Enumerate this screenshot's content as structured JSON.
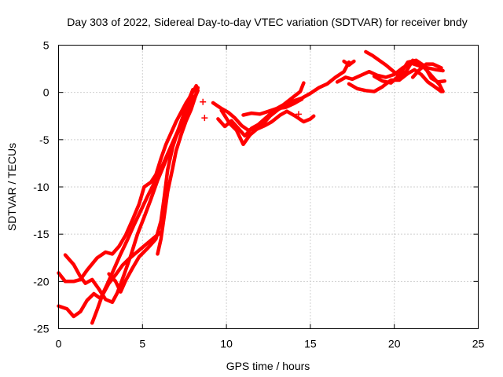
{
  "chart_data": {
    "type": "scatter",
    "title": "Day 303 of 2022, Sidereal Day-to-day VTEC variation (SDTVAR) for receiver bndy",
    "xlabel": "GPS time / hours",
    "ylabel": "SDTVAR / TECUs",
    "xlim": [
      0,
      25
    ],
    "ylim": [
      -25,
      5
    ],
    "xticks": [
      0,
      5,
      10,
      15,
      20,
      25
    ],
    "yticks": [
      -25,
      -20,
      -15,
      -10,
      -5,
      0,
      5
    ],
    "xtick_labels": [
      "0",
      "5",
      "10",
      "15",
      "20",
      "25"
    ],
    "ytick_labels": [
      "-25",
      "-20",
      "-15",
      "-10",
      "-5",
      "0",
      "5"
    ],
    "grid": true,
    "marker": "+",
    "color": "#ff0000",
    "series": [
      {
        "name": "s1",
        "points": [
          [
            0.0,
            -19.1
          ],
          [
            0.4,
            -20.0
          ],
          [
            0.9,
            -20.0
          ],
          [
            1.3,
            -19.8
          ],
          [
            1.7,
            -18.8
          ],
          [
            2.3,
            -17.5
          ],
          [
            2.8,
            -16.9
          ],
          [
            3.2,
            -17.1
          ],
          [
            3.6,
            -16.3
          ],
          [
            4.0,
            -15.1
          ],
          [
            4.4,
            -13.5
          ],
          [
            4.8,
            -11.8
          ],
          [
            5.1,
            -10.0
          ],
          [
            5.5,
            -9.5
          ],
          [
            5.8,
            -8.7
          ],
          [
            6.1,
            -7.0
          ],
          [
            6.4,
            -5.5
          ],
          [
            6.7,
            -4.3
          ],
          [
            7.0,
            -3.1
          ],
          [
            7.3,
            -2.1
          ],
          [
            7.6,
            -1.1
          ],
          [
            7.9,
            -0.3
          ],
          [
            8.2,
            0.7
          ]
        ]
      },
      {
        "name": "s2",
        "points": [
          [
            0.0,
            -22.6
          ],
          [
            0.5,
            -22.9
          ],
          [
            0.9,
            -23.7
          ],
          [
            1.3,
            -23.2
          ],
          [
            1.7,
            -22.0
          ],
          [
            2.1,
            -21.3
          ],
          [
            2.5,
            -21.8
          ],
          [
            2.9,
            -20.3
          ],
          [
            3.3,
            -18.7
          ],
          [
            3.7,
            -17.1
          ],
          [
            4.1,
            -15.6
          ],
          [
            4.5,
            -14.0
          ],
          [
            4.9,
            -12.5
          ],
          [
            5.3,
            -11.0
          ],
          [
            5.7,
            -9.6
          ],
          [
            6.1,
            -8.1
          ],
          [
            6.5,
            -6.5
          ],
          [
            6.9,
            -4.9
          ],
          [
            7.3,
            -3.3
          ],
          [
            7.7,
            -1.7
          ],
          [
            8.0,
            -0.4
          ]
        ]
      },
      {
        "name": "s3",
        "points": [
          [
            0.4,
            -17.2
          ],
          [
            0.9,
            -18.2
          ],
          [
            1.3,
            -19.5
          ],
          [
            1.6,
            -20.2
          ],
          [
            2.0,
            -19.8
          ],
          [
            2.4,
            -20.8
          ],
          [
            2.8,
            -21.9
          ],
          [
            3.2,
            -22.2
          ],
          [
            3.5,
            -21.2
          ],
          [
            3.9,
            -19.3
          ],
          [
            4.3,
            -17.3
          ],
          [
            4.7,
            -15.0
          ],
          [
            5.1,
            -13.2
          ],
          [
            5.5,
            -11.3
          ],
          [
            5.9,
            -9.3
          ],
          [
            6.3,
            -7.6
          ],
          [
            6.7,
            -5.8
          ],
          [
            7.1,
            -4.3
          ],
          [
            7.5,
            -2.8
          ],
          [
            7.9,
            -1.5
          ],
          [
            8.3,
            0.2
          ]
        ]
      },
      {
        "name": "s4",
        "points": [
          [
            2.0,
            -24.4
          ],
          [
            2.3,
            -23.0
          ],
          [
            2.6,
            -21.5
          ],
          [
            3.0,
            -20.2
          ],
          [
            3.4,
            -19.3
          ],
          [
            3.8,
            -18.3
          ],
          [
            4.2,
            -17.6
          ],
          [
            4.6,
            -17.0
          ],
          [
            5.0,
            -16.4
          ],
          [
            5.4,
            -15.8
          ],
          [
            5.8,
            -15.2
          ],
          [
            6.1,
            -14.8
          ]
        ]
      },
      {
        "name": "s5",
        "points": [
          [
            3.0,
            -19.2
          ],
          [
            3.4,
            -20.0
          ],
          [
            3.7,
            -21.1
          ],
          [
            4.0,
            -19.9
          ],
          [
            4.4,
            -18.6
          ],
          [
            4.8,
            -17.4
          ],
          [
            5.3,
            -16.5
          ],
          [
            5.8,
            -15.5
          ],
          [
            6.1,
            -13.6
          ],
          [
            6.3,
            -11.0
          ],
          [
            6.5,
            -8.2
          ],
          [
            6.8,
            -5.8
          ],
          [
            7.1,
            -4.1
          ],
          [
            7.4,
            -2.6
          ],
          [
            7.7,
            -1.0
          ],
          [
            8.0,
            0.3
          ]
        ]
      },
      {
        "name": "s6",
        "points": [
          [
            5.9,
            -17.1
          ],
          [
            6.1,
            -15.5
          ],
          [
            6.3,
            -13.0
          ],
          [
            6.5,
            -10.5
          ],
          [
            6.8,
            -8.0
          ],
          [
            7.0,
            -6.2
          ],
          [
            7.3,
            -4.5
          ],
          [
            7.6,
            -3.0
          ],
          [
            7.9,
            -1.8
          ],
          [
            8.1,
            -0.7
          ],
          [
            8.3,
            0.5
          ]
        ]
      },
      {
        "name": "s7",
        "points": [
          [
            9.2,
            -1.1
          ],
          [
            9.7,
            -1.7
          ],
          [
            10.1,
            -2.1
          ],
          [
            10.5,
            -2.7
          ],
          [
            10.9,
            -3.5
          ],
          [
            11.3,
            -4.0
          ],
          [
            11.7,
            -3.8
          ],
          [
            12.2,
            -3.3
          ],
          [
            12.6,
            -2.5
          ],
          [
            13.1,
            -1.8
          ],
          [
            13.6,
            -1.3
          ],
          [
            14.0,
            -0.9
          ],
          [
            14.5,
            -0.6
          ],
          [
            15.0,
            -0.1
          ],
          [
            15.5,
            0.5
          ],
          [
            16.0,
            0.9
          ],
          [
            16.5,
            1.6
          ],
          [
            17.0,
            2.2
          ],
          [
            17.3,
            3.2
          ]
        ]
      },
      {
        "name": "s8",
        "points": [
          [
            9.5,
            -2.8
          ],
          [
            9.9,
            -3.6
          ],
          [
            10.3,
            -3.0
          ],
          [
            10.7,
            -3.8
          ],
          [
            11.1,
            -4.6
          ],
          [
            11.5,
            -3.8
          ],
          [
            11.9,
            -3.4
          ],
          [
            12.4,
            -2.6
          ],
          [
            12.9,
            -1.8
          ],
          [
            13.4,
            -1.3
          ],
          [
            13.9,
            -0.6
          ],
          [
            14.4,
            0.1
          ],
          [
            14.6,
            1.0
          ]
        ]
      },
      {
        "name": "s9",
        "points": [
          [
            9.7,
            -1.9
          ],
          [
            10.2,
            -3.3
          ],
          [
            10.6,
            -4.0
          ],
          [
            11.0,
            -5.5
          ],
          [
            11.4,
            -4.5
          ],
          [
            11.8,
            -3.9
          ],
          [
            12.3,
            -3.5
          ],
          [
            12.7,
            -3.1
          ],
          [
            13.2,
            -2.4
          ],
          [
            13.6,
            -2.0
          ],
          [
            14.1,
            -2.5
          ],
          [
            14.6,
            -3.1
          ],
          [
            15.0,
            -2.8
          ],
          [
            15.2,
            -2.5
          ]
        ]
      },
      {
        "name": "s10",
        "points": [
          [
            11.0,
            -2.4
          ],
          [
            11.5,
            -2.2
          ],
          [
            12.0,
            -2.3
          ],
          [
            12.5,
            -2.0
          ],
          [
            13.0,
            -1.7
          ],
          [
            13.5,
            -1.6
          ],
          [
            14.0,
            -1.2
          ],
          [
            14.5,
            -0.7
          ]
        ]
      },
      {
        "name": "s11",
        "points": [
          [
            17.0,
            3.3
          ],
          [
            17.3,
            2.9
          ],
          [
            17.6,
            3.3
          ]
        ]
      },
      {
        "name": "s12",
        "points": [
          [
            16.6,
            1.1
          ],
          [
            17.1,
            1.6
          ],
          [
            17.5,
            1.4
          ],
          [
            18.0,
            1.8
          ],
          [
            18.5,
            2.2
          ],
          [
            19.0,
            1.8
          ],
          [
            19.5,
            1.6
          ],
          [
            20.0,
            1.9
          ],
          [
            20.5,
            2.6
          ],
          [
            21.0,
            3.1
          ],
          [
            21.5,
            2.8
          ],
          [
            22.0,
            2.6
          ],
          [
            22.5,
            2.4
          ],
          [
            22.9,
            2.3
          ]
        ]
      },
      {
        "name": "s13",
        "points": [
          [
            17.3,
            0.9
          ],
          [
            17.8,
            0.4
          ],
          [
            18.3,
            0.2
          ],
          [
            18.8,
            0.1
          ],
          [
            19.3,
            0.6
          ],
          [
            19.8,
            1.3
          ],
          [
            20.3,
            1.3
          ],
          [
            20.8,
            2.0
          ],
          [
            21.2,
            2.4
          ],
          [
            21.6,
            1.9
          ],
          [
            22.0,
            1.1
          ],
          [
            22.4,
            0.6
          ],
          [
            22.8,
            0.1
          ]
        ]
      },
      {
        "name": "s14",
        "points": [
          [
            18.3,
            4.3
          ],
          [
            18.7,
            3.9
          ],
          [
            19.1,
            3.4
          ],
          [
            19.5,
            2.9
          ],
          [
            19.9,
            2.3
          ],
          [
            20.3,
            1.7
          ],
          [
            20.7,
            2.2
          ],
          [
            21.1,
            3.4
          ],
          [
            21.5,
            3.1
          ],
          [
            21.9,
            2.4
          ],
          [
            22.3,
            1.6
          ],
          [
            22.7,
            0.8
          ],
          [
            22.9,
            0.1
          ]
        ]
      },
      {
        "name": "s15",
        "points": [
          [
            18.8,
            1.7
          ],
          [
            19.3,
            1.2
          ],
          [
            19.8,
            1.0
          ],
          [
            20.3,
            1.8
          ],
          [
            20.8,
            3.2
          ],
          [
            21.3,
            3.4
          ],
          [
            21.8,
            2.8
          ],
          [
            22.2,
            1.5
          ],
          [
            22.6,
            1.1
          ],
          [
            23.0,
            1.2
          ]
        ]
      },
      {
        "name": "s16",
        "points": [
          [
            21.1,
            1.6
          ],
          [
            21.5,
            2.4
          ],
          [
            21.9,
            3.0
          ],
          [
            22.3,
            3.0
          ],
          [
            22.8,
            2.6
          ]
        ]
      }
    ],
    "isolated_markers": [
      [
        8.6,
        -1.0
      ],
      [
        8.7,
        -2.7
      ],
      [
        14.3,
        -2.3
      ]
    ]
  }
}
